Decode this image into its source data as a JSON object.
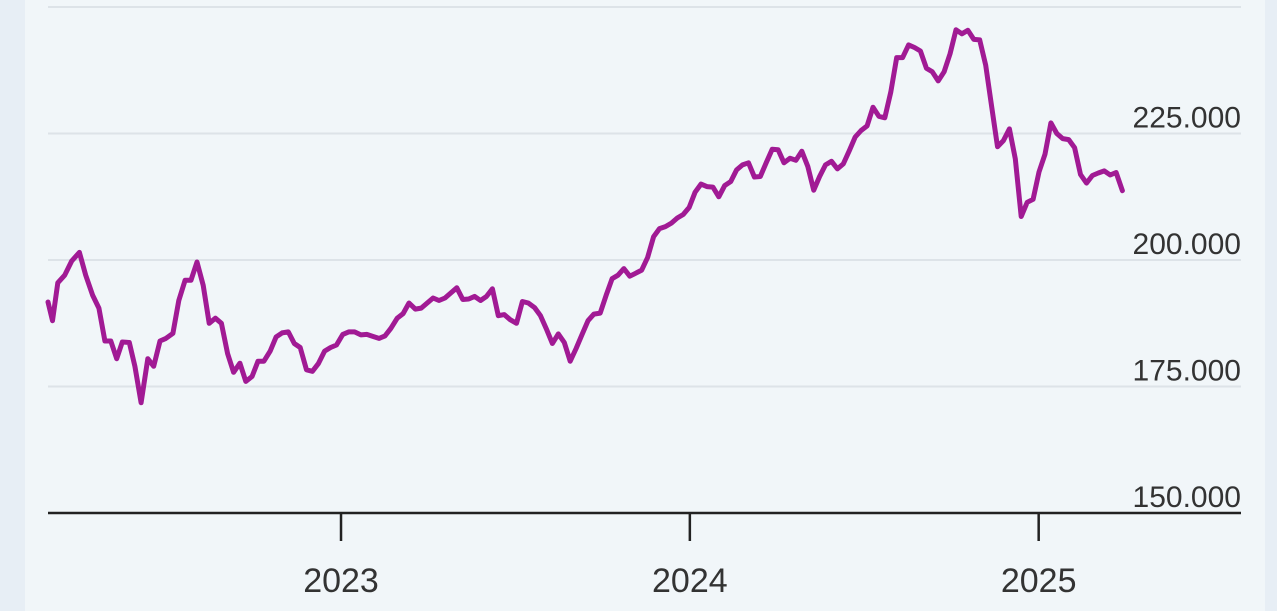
{
  "chart_data": {
    "type": "line",
    "title": "",
    "xlabel": "",
    "ylabel": "",
    "ylim": [
      150000,
      250000
    ],
    "y_ticks": [
      {
        "value": 150000,
        "label": "150.000"
      },
      {
        "value": 175000,
        "label": "175.000"
      },
      {
        "value": 200000,
        "label": "200.000"
      },
      {
        "value": 225000,
        "label": "225.000"
      }
    ],
    "x_ticks": [
      {
        "value": 2023.0,
        "label": "2023"
      },
      {
        "value": 2024.0,
        "label": "2024"
      },
      {
        "value": 2025.0,
        "label": "2025"
      }
    ],
    "x_range": [
      2022.16,
      2025.58
    ],
    "grid": true,
    "legend": "none",
    "colors": {
      "series": "#a11a94"
    },
    "series": [
      {
        "name": "",
        "points": [
          [
            2022.16,
            191700
          ],
          [
            2022.173,
            188000
          ],
          [
            2022.188,
            195500
          ],
          [
            2022.208,
            197000
          ],
          [
            2022.228,
            199800
          ],
          [
            2022.25,
            201500
          ],
          [
            2022.268,
            197000
          ],
          [
            2022.288,
            193000
          ],
          [
            2022.306,
            190500
          ],
          [
            2022.323,
            184000
          ],
          [
            2022.34,
            184000
          ],
          [
            2022.357,
            180500
          ],
          [
            2022.373,
            183800
          ],
          [
            2022.393,
            183700
          ],
          [
            2022.409,
            179000
          ],
          [
            2022.427,
            171800
          ],
          [
            2022.446,
            180500
          ],
          [
            2022.463,
            179000
          ],
          [
            2022.481,
            184000
          ],
          [
            2022.498,
            184500
          ],
          [
            2022.518,
            185500
          ],
          [
            2022.535,
            192000
          ],
          [
            2022.553,
            196000
          ],
          [
            2022.57,
            196000
          ],
          [
            2022.587,
            199600
          ],
          [
            2022.605,
            195000
          ],
          [
            2022.622,
            187500
          ],
          [
            2022.64,
            188500
          ],
          [
            2022.657,
            187500
          ],
          [
            2022.675,
            181500
          ],
          [
            2022.692,
            177800
          ],
          [
            2022.71,
            179600
          ],
          [
            2022.727,
            176000
          ],
          [
            2022.745,
            177000
          ],
          [
            2022.762,
            180000
          ],
          [
            2022.779,
            180000
          ],
          [
            2022.797,
            182000
          ],
          [
            2022.814,
            184800
          ],
          [
            2022.831,
            185600
          ],
          [
            2022.849,
            185800
          ],
          [
            2022.866,
            183500
          ],
          [
            2022.883,
            182700
          ],
          [
            2022.901,
            178300
          ],
          [
            2022.918,
            178000
          ],
          [
            2022.935,
            179500
          ],
          [
            2022.953,
            182000
          ],
          [
            2022.97,
            182700
          ],
          [
            2022.987,
            183200
          ],
          [
            2023.005,
            185300
          ],
          [
            2023.022,
            185800
          ],
          [
            2023.039,
            185800
          ],
          [
            2023.057,
            185200
          ],
          [
            2023.074,
            185300
          ],
          [
            2023.091,
            184900
          ],
          [
            2023.109,
            184500
          ],
          [
            2023.126,
            185000
          ],
          [
            2023.143,
            186500
          ],
          [
            2023.161,
            188500
          ],
          [
            2023.178,
            189400
          ],
          [
            2023.195,
            191500
          ],
          [
            2023.213,
            190300
          ],
          [
            2023.23,
            190500
          ],
          [
            2023.247,
            191500
          ],
          [
            2023.264,
            192500
          ],
          [
            2023.281,
            192000
          ],
          [
            2023.298,
            192500
          ],
          [
            2023.315,
            193500
          ],
          [
            2023.332,
            194500
          ],
          [
            2023.349,
            192200
          ],
          [
            2023.366,
            192300
          ],
          [
            2023.383,
            192800
          ],
          [
            2023.4,
            192000
          ],
          [
            2023.417,
            192800
          ],
          [
            2023.434,
            194300
          ],
          [
            2023.451,
            189000
          ],
          [
            2023.468,
            189200
          ],
          [
            2023.485,
            188200
          ],
          [
            2023.503,
            187500
          ],
          [
            2023.52,
            191800
          ],
          [
            2023.537,
            191500
          ],
          [
            2023.555,
            190600
          ],
          [
            2023.572,
            189000
          ],
          [
            2023.589,
            186300
          ],
          [
            2023.606,
            183500
          ],
          [
            2023.623,
            185400
          ],
          [
            2023.64,
            183700
          ],
          [
            2023.657,
            180000
          ],
          [
            2023.674,
            182500
          ],
          [
            2023.691,
            185300
          ],
          [
            2023.708,
            188000
          ],
          [
            2023.725,
            189300
          ],
          [
            2023.743,
            189500
          ],
          [
            2023.76,
            193000
          ],
          [
            2023.777,
            196300
          ],
          [
            2023.794,
            197000
          ],
          [
            2023.811,
            198300
          ],
          [
            2023.828,
            196800
          ],
          [
            2023.845,
            197400
          ],
          [
            2023.862,
            198000
          ],
          [
            2023.879,
            200500
          ],
          [
            2023.896,
            204600
          ],
          [
            2023.913,
            206200
          ],
          [
            2023.93,
            206600
          ],
          [
            2023.947,
            207300
          ],
          [
            2023.964,
            208300
          ],
          [
            2023.981,
            209000
          ],
          [
            2023.998,
            210400
          ],
          [
            2024.015,
            213400
          ],
          [
            2024.032,
            215000
          ],
          [
            2024.049,
            214500
          ],
          [
            2024.066,
            214400
          ],
          [
            2024.083,
            212500
          ],
          [
            2024.1,
            214700
          ],
          [
            2024.117,
            215500
          ],
          [
            2024.134,
            217800
          ],
          [
            2024.151,
            218800
          ],
          [
            2024.168,
            219200
          ],
          [
            2024.185,
            216400
          ],
          [
            2024.202,
            216500
          ],
          [
            2024.219,
            219200
          ],
          [
            2024.236,
            221900
          ],
          [
            2024.253,
            221800
          ],
          [
            2024.27,
            219200
          ],
          [
            2024.287,
            220100
          ],
          [
            2024.304,
            219700
          ],
          [
            2024.321,
            221500
          ],
          [
            2024.338,
            218500
          ],
          [
            2024.355,
            213800
          ],
          [
            2024.372,
            216500
          ],
          [
            2024.389,
            218800
          ],
          [
            2024.406,
            219500
          ],
          [
            2024.423,
            218000
          ],
          [
            2024.44,
            219000
          ],
          [
            2024.457,
            221600
          ],
          [
            2024.474,
            224300
          ],
          [
            2024.491,
            225600
          ],
          [
            2024.508,
            226500
          ],
          [
            2024.525,
            230200
          ],
          [
            2024.542,
            228400
          ],
          [
            2024.559,
            228100
          ],
          [
            2024.576,
            233200
          ],
          [
            2024.593,
            240000
          ],
          [
            2024.61,
            240000
          ],
          [
            2024.627,
            242500
          ],
          [
            2024.644,
            242000
          ],
          [
            2024.661,
            241300
          ],
          [
            2024.678,
            237900
          ],
          [
            2024.695,
            237200
          ],
          [
            2024.712,
            235400
          ],
          [
            2024.729,
            237200
          ],
          [
            2024.746,
            240800
          ],
          [
            2024.763,
            245500
          ],
          [
            2024.78,
            244700
          ],
          [
            2024.797,
            245400
          ],
          [
            2024.814,
            243600
          ],
          [
            2024.831,
            243500
          ],
          [
            2024.848,
            238500
          ],
          [
            2024.865,
            230400
          ],
          [
            2024.882,
            222400
          ],
          [
            2024.899,
            223600
          ],
          [
            2024.916,
            225900
          ],
          [
            2024.933,
            220000
          ],
          [
            2024.95,
            208600
          ],
          [
            2024.967,
            211400
          ],
          [
            2024.984,
            212000
          ],
          [
            2025.001,
            217400
          ],
          [
            2025.018,
            220900
          ],
          [
            2025.035,
            227100
          ],
          [
            2025.052,
            225000
          ],
          [
            2025.069,
            224000
          ],
          [
            2025.086,
            223800
          ],
          [
            2025.103,
            222200
          ],
          [
            2025.12,
            216900
          ],
          [
            2025.137,
            215200
          ],
          [
            2025.154,
            216700
          ],
          [
            2025.171,
            217200
          ],
          [
            2025.188,
            217600
          ],
          [
            2025.205,
            216800
          ],
          [
            2025.222,
            217300
          ],
          [
            2025.24,
            213700
          ]
        ]
      }
    ]
  }
}
